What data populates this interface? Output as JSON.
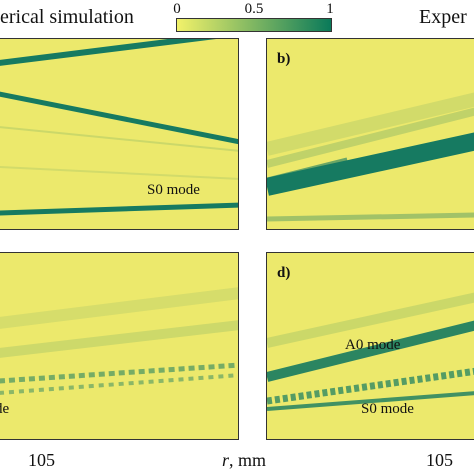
{
  "header": {
    "left_title": "erical simulation",
    "right_title": "Exper"
  },
  "colorbar": {
    "ticks": [
      "0",
      "0.5",
      "1"
    ],
    "color_low": "#f2f26a",
    "color_high": "#0a7a5a"
  },
  "panels": {
    "b": {
      "label": "b)"
    },
    "c": {
      "annotation": "de"
    },
    "d": {
      "label": "d)",
      "annotation_a0": "A0 mode",
      "annotation_s0": "S0 mode"
    },
    "a": {
      "annotation": "S0 mode"
    }
  },
  "x_axis": {
    "tick_left": "105",
    "tick_right": "105",
    "label_var": "r",
    "label_unit": ", mm"
  },
  "colors": {
    "background": "#ece96c",
    "wave": "#167a61",
    "panel_border": "#333333"
  }
}
